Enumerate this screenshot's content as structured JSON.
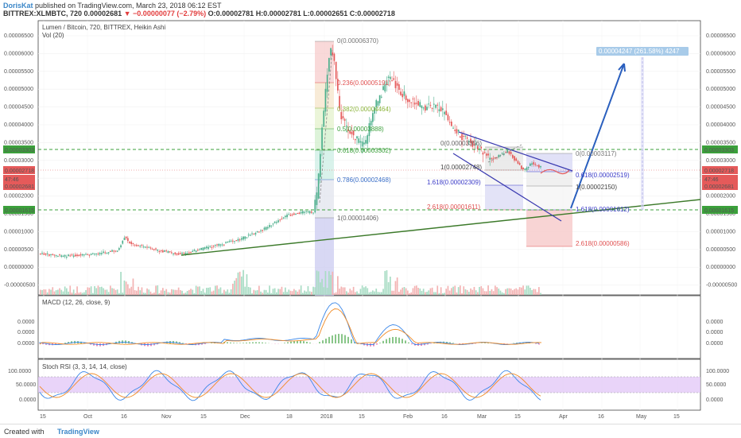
{
  "header": {
    "user": "DorisKat",
    "published": "published on TradingView.com, March 23, 2018 06:12 EST",
    "symbol": "BITTREX:XLMBTC, 720",
    "price": "0.00002681",
    "change": "−0.00000077 (−2.79%)",
    "ohlc": "O:0.00002781 H:0.00002781 L:0.00002651 C:0.00002718"
  },
  "footer": {
    "created": "Created with",
    "brand": "TradingView"
  },
  "colors": {
    "up": "#4caf8c",
    "down": "#e55a5a",
    "blue": "#2a5fbe",
    "green_trend": "#3c7a2a",
    "dashed_green": "#3ba03b",
    "stoch_band": "#e3c9f7"
  },
  "main_panel": {
    "title": "Lumen / Bitcoin, 720, BITTREX, Heikin Ashi",
    "vol_label": "Vol (20)",
    "y_ticks": [
      "0.00006500",
      "0.00006000",
      "0.00005500",
      "0.00005000",
      "0.00004500",
      "0.00004000",
      "0.00003500",
      "0.00003000",
      "0.00002500",
      "0.00002000",
      "0.00001500",
      "0.00001000",
      "0.00000500",
      "0.00000000",
      "-0.00000500"
    ],
    "price_tags": [
      "0.00003303",
      "0.00002718",
      "47:46",
      "0.00002681",
      "0.00001615"
    ],
    "x_ticks": [
      "15",
      "Oct",
      "16",
      "Nov",
      "15",
      "Dec",
      "18",
      "2018",
      "15",
      "Feb",
      "16",
      "Mar",
      "15",
      "Apr",
      "16",
      "May",
      "15"
    ],
    "fib_left": [
      "0(0.00006370)",
      "0.236(0.00005191)",
      "0.382(0.00004464)",
      "0.5(0.00003888)",
      "0.618(0.00003302)",
      "0.786(0.00002468)",
      "1(0.00001406)"
    ],
    "fib_right": [
      "0(0.00003356)",
      "1(0.00002748)",
      "1.618(0.00002309)",
      "2.618(0.00001611)"
    ],
    "fib_right2": [
      "0(0.00003117)",
      "0.618(0.00002519)",
      "1(0.00002150)",
      "1.618(0.00001612)",
      "2.618(0.00000586)"
    ],
    "target_label": "0.00004247 (261.58%) 4247"
  },
  "macd_panel": {
    "title": "MACD (12, 26, close, 9)",
    "y_ticks": [
      "0.0000",
      "0.0000",
      "0.0000"
    ]
  },
  "stoch_panel": {
    "title": "Stoch RSI (3, 3, 14, 14, close)",
    "y_ticks": [
      "100.0000",
      "50.0000",
      "0.0000"
    ]
  },
  "chart_data": {
    "type": "candlestick",
    "x": [
      "Sep 15",
      "Oct",
      "Oct 16",
      "Nov",
      "Nov 15",
      "Dec",
      "Dec 18",
      "2018",
      "Jan 15",
      "Feb",
      "Feb 16",
      "Mar",
      "Mar 15"
    ],
    "close": [
      4e-06,
      3.5e-06,
      4.5e-06,
      4e-06,
      4e-06,
      6e-06,
      1.4e-05,
      6.2e-05,
      4.2e-05,
      5.1e-05,
      4.2e-05,
      3e-05,
      2.75e-05
    ],
    "ylim": [
      -5e-06,
      6.5e-05
    ]
  }
}
